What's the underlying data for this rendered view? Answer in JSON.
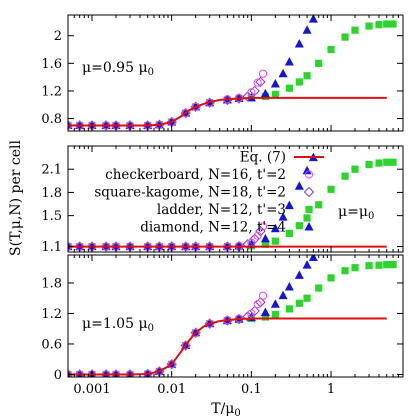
{
  "chart_data": {
    "type": "scatter",
    "xlabel": "T/μ",
    "xlabel_sub": "0",
    "ylabel": "S(T,μ,N) per cell",
    "x_scale": "log",
    "xlim": [
      0.0005,
      8
    ],
    "xticks": [
      {
        "value": 0.001,
        "label": "0.001"
      },
      {
        "value": 0.01,
        "label": "0.01"
      },
      {
        "value": 0.1,
        "label": "0.1"
      },
      {
        "value": 1,
        "label": "1"
      }
    ],
    "legend_location": "middle panel, upper-left",
    "legend": [
      {
        "series": "eq7",
        "label": "Eq. (7)"
      },
      {
        "series": "checkerboard",
        "label": "checkerboard, N=16, t'=2"
      },
      {
        "series": "square_kagome",
        "label": "square-kagome, N=18, t'=2"
      },
      {
        "series": "ladder",
        "label": "ladder, N=12, t'=3"
      },
      {
        "series": "diamond",
        "label": "diamond, N=12, t'=4"
      }
    ],
    "series_styles": {
      "eq7": {
        "color": "#dd1010",
        "marker": "line"
      },
      "checkerboard": {
        "color": "#ee44ee",
        "marker": "circle-open"
      },
      "square_kagome": {
        "color": "#7a3cc9",
        "marker": "diamond-open"
      },
      "ladder": {
        "color": "#2cd42c",
        "marker": "square-filled"
      },
      "diamond": {
        "color": "#1515d8",
        "marker": "triangle-filled"
      }
    },
    "panels": [
      {
        "label": "μ=0.95 μ",
        "label_sub": "0",
        "ylim": [
          0.62,
          2.3
        ],
        "yticks": [
          0.8,
          1.2,
          1.6,
          2
        ],
        "ytick_labels": [
          "0.8",
          "1.2",
          "1.6",
          "2"
        ],
        "series": {
          "eq7": {
            "x": [
              0.0005,
              0.001,
              0.002,
              0.003,
              0.005,
              0.007,
              0.01,
              0.013,
              0.016,
              0.02,
              0.025,
              0.03,
              0.04,
              0.05,
              0.07,
              0.1,
              0.15,
              0.2,
              0.3,
              0.5,
              1,
              2,
              5
            ],
            "y": [
              0.7,
              0.7,
              0.7,
              0.7,
              0.7,
              0.71,
              0.75,
              0.83,
              0.91,
              0.97,
              1.01,
              1.04,
              1.07,
              1.08,
              1.09,
              1.1,
              1.1,
              1.1,
              1.1,
              1.1,
              1.1,
              1.1,
              1.1
            ]
          },
          "checkerboard": {
            "x": [
              0.0005,
              0.0007,
              0.001,
              0.0015,
              0.002,
              0.003,
              0.005,
              0.007,
              0.01,
              0.015,
              0.02,
              0.03,
              0.05,
              0.07,
              0.1,
              0.12,
              0.14
            ],
            "y": [
              0.7,
              0.7,
              0.7,
              0.7,
              0.7,
              0.7,
              0.7,
              0.71,
              0.75,
              0.88,
              0.97,
              1.03,
              1.08,
              1.1,
              1.18,
              1.32,
              1.45
            ]
          },
          "square_kagome": {
            "x": [
              0.0005,
              0.0007,
              0.001,
              0.0015,
              0.002,
              0.003,
              0.005,
              0.007,
              0.01,
              0.015,
              0.02,
              0.03,
              0.05,
              0.07,
              0.09,
              0.11,
              0.13
            ],
            "y": [
              0.7,
              0.7,
              0.7,
              0.7,
              0.7,
              0.7,
              0.7,
              0.71,
              0.75,
              0.88,
              0.97,
              1.03,
              1.07,
              1.09,
              1.12,
              1.2,
              1.33
            ]
          },
          "ladder": {
            "x": [
              0.0005,
              0.0007,
              0.001,
              0.0015,
              0.002,
              0.003,
              0.005,
              0.007,
              0.01,
              0.015,
              0.02,
              0.03,
              0.05,
              0.07,
              0.1,
              0.15,
              0.2,
              0.3,
              0.4,
              0.5,
              0.7,
              1,
              1.5,
              2,
              3,
              4,
              5,
              6
            ],
            "y": [
              0.7,
              0.7,
              0.7,
              0.7,
              0.7,
              0.7,
              0.7,
              0.71,
              0.75,
              0.88,
              0.97,
              1.03,
              1.07,
              1.09,
              1.1,
              1.12,
              1.15,
              1.24,
              1.33,
              1.42,
              1.6,
              1.8,
              1.98,
              2.08,
              2.14,
              2.16,
              2.17,
              2.17
            ]
          },
          "diamond": {
            "x": [
              0.0005,
              0.0007,
              0.001,
              0.0015,
              0.002,
              0.003,
              0.005,
              0.007,
              0.01,
              0.015,
              0.02,
              0.03,
              0.05,
              0.07,
              0.1,
              0.15,
              0.2,
              0.25,
              0.3,
              0.4,
              0.5,
              0.6
            ],
            "y": [
              0.7,
              0.7,
              0.7,
              0.7,
              0.7,
              0.7,
              0.7,
              0.71,
              0.75,
              0.88,
              0.97,
              1.03,
              1.07,
              1.09,
              1.1,
              1.16,
              1.3,
              1.45,
              1.62,
              1.88,
              2.08,
              2.24
            ]
          }
        }
      },
      {
        "label": "μ=μ",
        "label_sub": "0",
        "ylim": [
          1.03,
          2.4
        ],
        "yticks": [
          1.1,
          1.5,
          1.8,
          2.1
        ],
        "ytick_labels": [
          "1.1",
          "1.5",
          "1.8",
          "2.1"
        ],
        "series": {
          "eq7": {
            "x": [
              0.0005,
              0.01,
              0.1,
              1,
              5
            ],
            "y": [
              1.1,
              1.1,
              1.1,
              1.1,
              1.1
            ]
          },
          "checkerboard": {
            "x": [
              0.0005,
              0.0007,
              0.001,
              0.0015,
              0.002,
              0.003,
              0.005,
              0.007,
              0.01,
              0.015,
              0.02,
              0.03,
              0.05,
              0.07,
              0.1,
              0.12,
              0.14
            ],
            "y": [
              1.1,
              1.1,
              1.1,
              1.1,
              1.1,
              1.1,
              1.1,
              1.1,
              1.1,
              1.1,
              1.1,
              1.1,
              1.1,
              1.11,
              1.15,
              1.24,
              1.36
            ]
          },
          "square_kagome": {
            "x": [
              0.0005,
              0.0007,
              0.001,
              0.0015,
              0.002,
              0.003,
              0.005,
              0.007,
              0.01,
              0.015,
              0.02,
              0.03,
              0.05,
              0.07,
              0.09,
              0.11,
              0.13
            ],
            "y": [
              1.1,
              1.1,
              1.1,
              1.1,
              1.1,
              1.1,
              1.1,
              1.1,
              1.1,
              1.1,
              1.1,
              1.1,
              1.1,
              1.1,
              1.13,
              1.2,
              1.3
            ]
          },
          "ladder": {
            "x": [
              0.0005,
              0.0007,
              0.001,
              0.0015,
              0.002,
              0.003,
              0.005,
              0.007,
              0.01,
              0.015,
              0.02,
              0.03,
              0.05,
              0.07,
              0.1,
              0.15,
              0.2,
              0.3,
              0.4,
              0.5,
              0.7,
              1,
              1.5,
              2,
              3,
              4,
              5,
              6
            ],
            "y": [
              1.1,
              1.1,
              1.1,
              1.1,
              1.1,
              1.1,
              1.1,
              1.1,
              1.1,
              1.1,
              1.1,
              1.1,
              1.1,
              1.1,
              1.11,
              1.13,
              1.17,
              1.27,
              1.37,
              1.47,
              1.64,
              1.84,
              2.01,
              2.1,
              2.16,
              2.18,
              2.19,
              2.19
            ]
          },
          "diamond": {
            "x": [
              0.0005,
              0.0007,
              0.001,
              0.0015,
              0.002,
              0.003,
              0.005,
              0.007,
              0.01,
              0.015,
              0.02,
              0.03,
              0.05,
              0.07,
              0.1,
              0.15,
              0.2,
              0.25,
              0.3,
              0.4,
              0.5,
              0.6
            ],
            "y": [
              1.1,
              1.1,
              1.1,
              1.1,
              1.1,
              1.1,
              1.1,
              1.1,
              1.1,
              1.1,
              1.1,
              1.1,
              1.1,
              1.11,
              1.13,
              1.2,
              1.33,
              1.48,
              1.63,
              1.88,
              2.08,
              2.25
            ]
          }
        }
      },
      {
        "label": "μ=1.05 μ",
        "label_sub": "0",
        "ylim": [
          -0.05,
          2.35
        ],
        "yticks": [
          0,
          0.6,
          1.2,
          1.8
        ],
        "ytick_labels": [
          "0",
          "0.6",
          "1.2",
          "1.8"
        ],
        "series": {
          "eq7": {
            "x": [
              0.0005,
              0.001,
              0.002,
              0.003,
              0.005,
              0.007,
              0.01,
              0.013,
              0.016,
              0.02,
              0.025,
              0.03,
              0.04,
              0.05,
              0.07,
              0.1,
              0.15,
              0.2,
              0.3,
              0.5,
              1,
              2,
              5
            ],
            "y": [
              0,
              0,
              0,
              0,
              0.01,
              0.06,
              0.2,
              0.44,
              0.64,
              0.82,
              0.94,
              1.0,
              1.05,
              1.07,
              1.09,
              1.1,
              1.1,
              1.1,
              1.1,
              1.1,
              1.1,
              1.1,
              1.1
            ]
          },
          "checkerboard": {
            "x": [
              0.0005,
              0.0007,
              0.001,
              0.0015,
              0.002,
              0.003,
              0.005,
              0.007,
              0.01,
              0.015,
              0.02,
              0.03,
              0.05,
              0.07,
              0.1,
              0.12,
              0.14
            ],
            "y": [
              0,
              0,
              0,
              0,
              0,
              0,
              0.01,
              0.06,
              0.2,
              0.57,
              0.82,
              1.0,
              1.07,
              1.1,
              1.2,
              1.38,
              1.55
            ]
          },
          "square_kagome": {
            "x": [
              0.0005,
              0.0007,
              0.001,
              0.0015,
              0.002,
              0.003,
              0.005,
              0.007,
              0.01,
              0.015,
              0.02,
              0.03,
              0.05,
              0.07,
              0.09,
              0.11,
              0.13
            ],
            "y": [
              0,
              0,
              0,
              0,
              0,
              0,
              0.01,
              0.06,
              0.2,
              0.57,
              0.82,
              1.0,
              1.06,
              1.09,
              1.14,
              1.25,
              1.42
            ]
          },
          "ladder": {
            "x": [
              0.0005,
              0.0007,
              0.001,
              0.0015,
              0.002,
              0.003,
              0.005,
              0.007,
              0.01,
              0.015,
              0.02,
              0.03,
              0.05,
              0.07,
              0.1,
              0.15,
              0.2,
              0.3,
              0.4,
              0.5,
              0.7,
              1,
              1.5,
              2,
              3,
              4,
              5,
              6
            ],
            "y": [
              0,
              0,
              0,
              0,
              0,
              0,
              0.01,
              0.06,
              0.2,
              0.57,
              0.82,
              1.0,
              1.06,
              1.08,
              1.1,
              1.13,
              1.18,
              1.29,
              1.4,
              1.5,
              1.7,
              1.9,
              2.04,
              2.1,
              2.14,
              2.15,
              2.16,
              2.16
            ]
          },
          "diamond": {
            "x": [
              0.0005,
              0.0007,
              0.001,
              0.0015,
              0.002,
              0.003,
              0.005,
              0.007,
              0.01,
              0.015,
              0.02,
              0.03,
              0.05,
              0.07,
              0.1,
              0.15,
              0.2,
              0.25,
              0.3,
              0.4,
              0.5,
              0.6
            ],
            "y": [
              0,
              0,
              0,
              0,
              0,
              0,
              0.01,
              0.06,
              0.2,
              0.57,
              0.82,
              1.0,
              1.06,
              1.09,
              1.12,
              1.22,
              1.38,
              1.55,
              1.72,
              1.95,
              2.15,
              2.3
            ]
          }
        }
      }
    ]
  }
}
